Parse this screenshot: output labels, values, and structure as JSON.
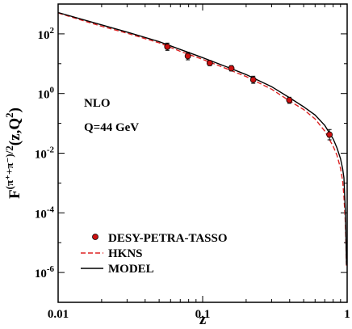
{
  "chart_data": {
    "type": "scatter",
    "x_scale": "log",
    "y_scale": "log",
    "xlim": [
      0.01,
      1
    ],
    "ylim": [
      1e-07,
      1000
    ],
    "xlabel": "z",
    "ylabel_base": "F",
    "ylabel_sup": "(π⁺+π⁻)/2",
    "ylabel_args": "(z,Q",
    "ylabel_sup2": "2",
    "ylabel_end": ")",
    "x_ticks": [
      {
        "value": 0.01,
        "label": "0.01"
      },
      {
        "value": 0.1,
        "label": "0.1"
      },
      {
        "value": 1,
        "label": "1"
      }
    ],
    "y_ticks": [
      {
        "value": 100,
        "base": "10",
        "exp": "2"
      },
      {
        "value": 1,
        "base": "10",
        "exp": "0"
      },
      {
        "value": 0.01,
        "base": "10",
        "exp": "-2"
      },
      {
        "value": 0.0001,
        "base": "10",
        "exp": "-4"
      },
      {
        "value": 1e-06,
        "base": "10",
        "exp": "-6"
      }
    ],
    "annotations": [
      "NLO",
      "Q=44 GeV"
    ],
    "series": [
      {
        "name": "DESY-PETRA-TASSO",
        "kind": "points",
        "color": "#cc1111",
        "points": [
          {
            "x": 0.057,
            "y": 37,
            "err_lo": 28,
            "err_hi": 49
          },
          {
            "x": 0.079,
            "y": 18,
            "err_lo": 13.5,
            "err_hi": 24
          },
          {
            "x": 0.112,
            "y": 10.5,
            "err_lo": 8.6,
            "err_hi": 12.7
          },
          {
            "x": 0.158,
            "y": 7.0,
            "err_lo": 5.7,
            "err_hi": 8.6
          },
          {
            "x": 0.224,
            "y": 2.9,
            "err_lo": 2.2,
            "err_hi": 3.8
          },
          {
            "x": 0.398,
            "y": 0.6,
            "err_lo": 0.47,
            "err_hi": 0.75
          },
          {
            "x": 0.755,
            "y": 0.042,
            "err_lo": 0.028,
            "err_hi": 0.062
          }
        ]
      },
      {
        "name": "HKNS",
        "kind": "dashed",
        "color": "#dd2222",
        "points": [
          [
            0.01,
            500
          ],
          [
            0.02,
            180
          ],
          [
            0.03,
            105
          ],
          [
            0.05,
            50
          ],
          [
            0.07,
            26
          ],
          [
            0.1,
            14
          ],
          [
            0.15,
            6.5
          ],
          [
            0.2,
            3.7
          ],
          [
            0.3,
            1.4
          ],
          [
            0.4,
            0.56
          ],
          [
            0.5,
            0.29
          ],
          [
            0.6,
            0.14
          ],
          [
            0.7,
            0.055
          ],
          [
            0.8,
            0.017
          ],
          [
            0.85,
            0.0085
          ],
          [
            0.9,
            0.0031
          ],
          [
            0.93,
            0.0012
          ],
          [
            0.95,
            0.00035
          ],
          [
            0.97,
            6e-05
          ],
          [
            0.98,
            1.3e-05
          ],
          [
            0.99,
            1.5e-06
          ]
        ]
      },
      {
        "name": "MODEL",
        "kind": "solid",
        "color": "#000000",
        "points": [
          [
            0.01,
            520
          ],
          [
            0.02,
            200
          ],
          [
            0.03,
            115
          ],
          [
            0.05,
            55
          ],
          [
            0.07,
            30
          ],
          [
            0.1,
            16
          ],
          [
            0.15,
            7.5
          ],
          [
            0.2,
            4.3
          ],
          [
            0.3,
            1.7
          ],
          [
            0.4,
            0.72
          ],
          [
            0.5,
            0.36
          ],
          [
            0.6,
            0.19
          ],
          [
            0.7,
            0.085
          ],
          [
            0.8,
            0.03
          ],
          [
            0.85,
            0.015
          ],
          [
            0.9,
            0.0065
          ],
          [
            0.93,
            0.003
          ],
          [
            0.95,
            0.0015
          ],
          [
            0.97,
            0.00015
          ],
          [
            0.98,
            2e-05
          ],
          [
            0.99,
            1.8e-06
          ]
        ]
      }
    ],
    "legend": {
      "placement": "bottom-left",
      "entries": [
        "DESY-PETRA-TASSO",
        "HKNS",
        "MODEL"
      ]
    }
  }
}
